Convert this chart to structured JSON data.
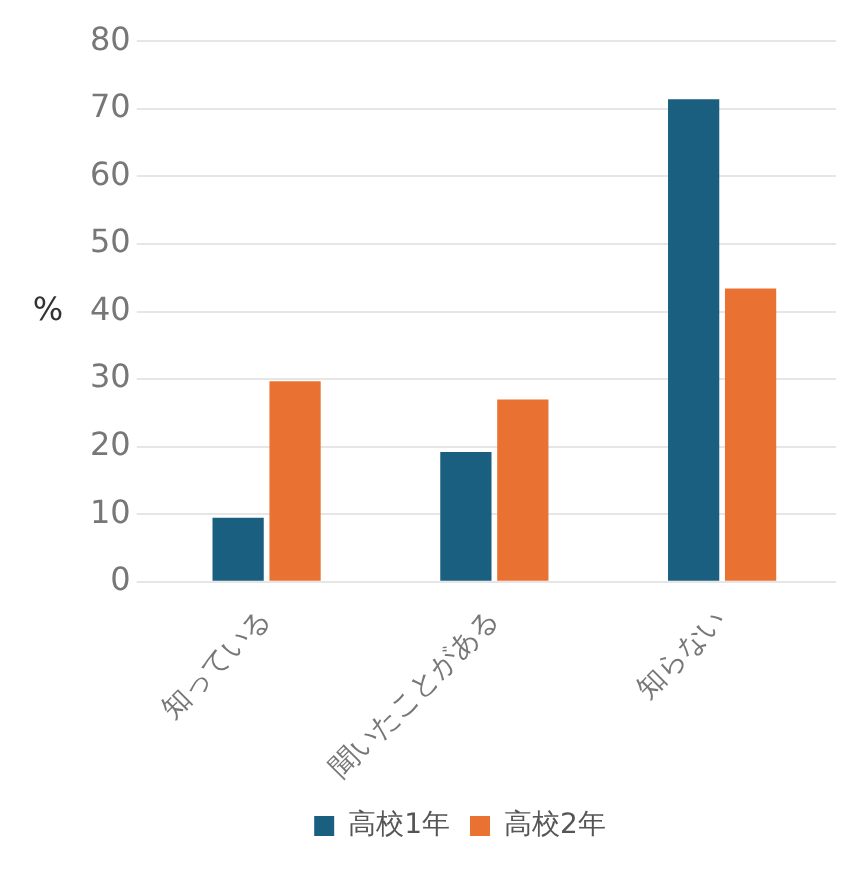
{
  "chart_data": {
    "type": "bar",
    "ylabel": "%",
    "categories": [
      "知っている",
      "聞いたことがある",
      "知らない"
    ],
    "series": [
      {
        "name": "高校1年",
        "color": "#1a5f80",
        "values": [
          9.5,
          19.2,
          71.4
        ]
      },
      {
        "name": "高校2年",
        "color": "#e97132",
        "values": [
          29.7,
          27.0,
          43.4
        ]
      }
    ],
    "ylim": [
      0,
      80
    ],
    "yticks": [
      0,
      10,
      20,
      30,
      40,
      50,
      60,
      70,
      80
    ],
    "grid": "y",
    "legend": "bottom"
  }
}
